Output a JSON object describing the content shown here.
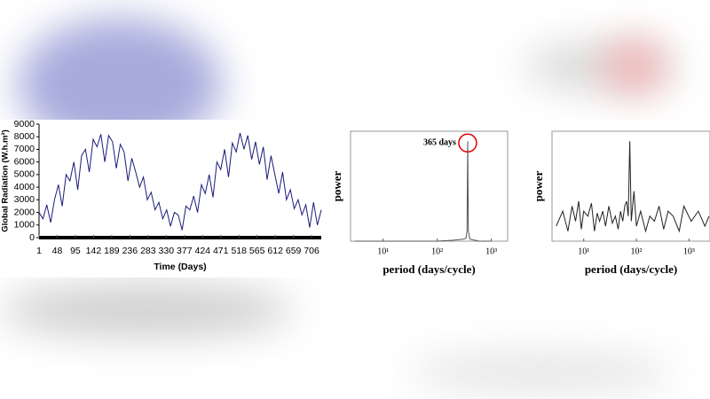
{
  "chart_data": [
    {
      "type": "line",
      "xlabel": "Time (Days)",
      "ylabel": "Global Radiation (W.h.m²)",
      "color": "#1a1a7a",
      "x": [
        1,
        11,
        21,
        31,
        41,
        51,
        61,
        71,
        81,
        91,
        101,
        111,
        121,
        131,
        141,
        151,
        161,
        171,
        181,
        191,
        201,
        211,
        221,
        231,
        241,
        251,
        261,
        271,
        281,
        291,
        301,
        311,
        321,
        331,
        341,
        351,
        361,
        371,
        381,
        391,
        401,
        411,
        421,
        431,
        441,
        451,
        461,
        471,
        481,
        491,
        501,
        511,
        521,
        531,
        541,
        551,
        561,
        571,
        581,
        591,
        601,
        611,
        621,
        631,
        641,
        651,
        661,
        671,
        681,
        691,
        701,
        711,
        721,
        731
      ],
      "values": [
        2000,
        1500,
        2600,
        1200,
        3000,
        4200,
        2500,
        5000,
        4500,
        6000,
        3800,
        6500,
        7000,
        5200,
        7800,
        7200,
        8200,
        6000,
        8100,
        7600,
        5500,
        7400,
        6800,
        4500,
        6300,
        5200,
        4000,
        4800,
        3000,
        3600,
        2200,
        2800,
        1500,
        2200,
        900,
        2000,
        1800,
        600,
        2500,
        2200,
        3300,
        2000,
        4200,
        3500,
        5000,
        3200,
        6000,
        5400,
        7000,
        4800,
        7500,
        6800,
        8300,
        7000,
        8100,
        6200,
        7600,
        5800,
        7200,
        4600,
        6500,
        5000,
        3500,
        5200,
        3000,
        3800,
        2300,
        3000,
        1800,
        2600,
        800,
        2800,
        1000,
        2200
      ],
      "xlim": [
        1,
        731
      ],
      "xticks": [
        1,
        48,
        95,
        142,
        189,
        236,
        283,
        330,
        377,
        424,
        471,
        518,
        565,
        612,
        659,
        706
      ],
      "ylim": [
        0,
        9000
      ],
      "yticks": [
        0,
        1000,
        2000,
        3000,
        4000,
        5000,
        6000,
        7000,
        8000,
        9000
      ]
    },
    {
      "type": "line",
      "xlabel": "period (days/cycle)",
      "ylabel": "power",
      "color": "#555555",
      "xscale": "log",
      "x": [
        3,
        10,
        50,
        100,
        200,
        300,
        340,
        355,
        365,
        375,
        400,
        600,
        1000
      ],
      "values": [
        0,
        0,
        0,
        0,
        0.01,
        0.02,
        0.03,
        0.1,
        1,
        0.1,
        0.02,
        0,
        0
      ],
      "xlim": [
        2.5,
        2000
      ],
      "xticks": [
        {
          "value": 10,
          "label": "10¹"
        },
        {
          "value": 100,
          "label": "10²"
        },
        {
          "value": 1000,
          "label": "10³"
        }
      ],
      "ylim": [
        0,
        1.1
      ],
      "annotation": "365 days",
      "annotation_color": "#e00000"
    },
    {
      "type": "line",
      "xlabel": "period (days/cycle)",
      "ylabel": "power",
      "color": "#222222",
      "xscale": "log",
      "x": [
        3,
        4,
        5,
        6,
        7,
        8,
        9,
        10,
        12,
        14,
        16,
        18,
        20,
        23,
        26,
        30,
        35,
        40,
        45,
        50,
        55,
        60,
        65,
        70,
        75,
        80,
        90,
        100,
        120,
        150,
        180,
        220,
        270,
        330,
        400,
        500,
        650,
        800,
        1100,
        1500,
        2000,
        2400
      ],
      "values": [
        0.15,
        0.3,
        0.1,
        0.35,
        0.2,
        0.4,
        0.12,
        0.3,
        0.25,
        0.38,
        0.1,
        0.28,
        0.2,
        0.3,
        0.15,
        0.35,
        0.18,
        0.25,
        0.12,
        0.3,
        0.2,
        0.35,
        0.4,
        0.25,
        1.0,
        0.2,
        0.5,
        0.15,
        0.3,
        0.1,
        0.25,
        0.2,
        0.35,
        0.12,
        0.3,
        0.25,
        0.1,
        0.35,
        0.2,
        0.3,
        0.15,
        0.25
      ],
      "xlim": [
        2.5,
        2500
      ],
      "xticks": [
        {
          "value": 10,
          "label": "10¹"
        },
        {
          "value": 100,
          "label": "10²"
        },
        {
          "value": 1000,
          "label": "10³"
        }
      ],
      "ylim": [
        0,
        1.1
      ]
    }
  ]
}
